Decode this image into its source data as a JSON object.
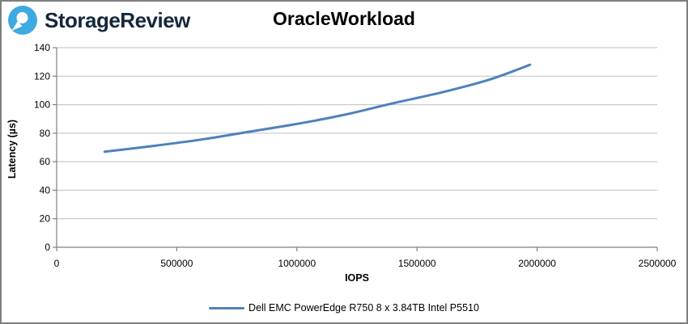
{
  "header": {
    "brand": "StorageReview"
  },
  "chart_data": {
    "type": "line",
    "title": "OracleWorkload",
    "xlabel": "IOPS",
    "ylabel": "Latency (µs)",
    "xlim": [
      0,
      2500000
    ],
    "ylim": [
      0,
      140
    ],
    "x_ticks": [
      0,
      500000,
      1000000,
      1500000,
      2000000,
      2500000
    ],
    "y_ticks": [
      0,
      20,
      40,
      60,
      80,
      100,
      120,
      140
    ],
    "grid": "horizontal-only",
    "legend_position": "bottom-center",
    "axis_color": "#808080",
    "gridline_color": "#bfbfbf",
    "series": [
      {
        "name": "Dell EMC PowerEdge R750 8 x 3.84TB Intel P5510",
        "color": "#4f81bd",
        "x": [
          200000,
          400000,
          600000,
          800000,
          1000000,
          1200000,
          1400000,
          1600000,
          1800000,
          1970000
        ],
        "y": [
          67,
          71,
          75.5,
          81,
          86.5,
          93,
          101,
          108.5,
          117.5,
          128
        ]
      }
    ]
  },
  "colors": {
    "logo_blue": "#3fa9e1",
    "brand_text": "#15283b",
    "page_border": "#7f7f7f"
  }
}
